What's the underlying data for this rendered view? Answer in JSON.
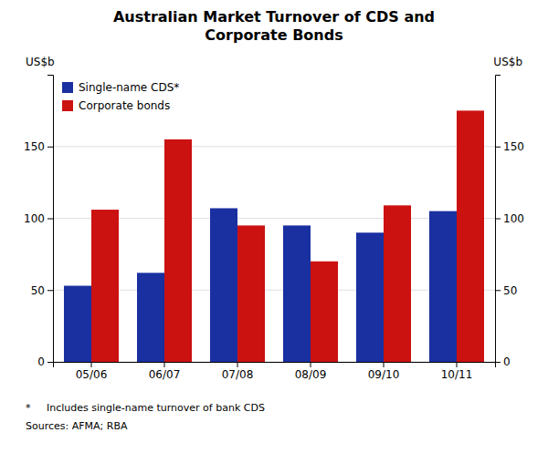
{
  "chart_data": {
    "type": "bar",
    "title": "Australian Market Turnover of CDS and\nCorporate Bonds",
    "categories": [
      "05/06",
      "06/07",
      "07/08",
      "08/09",
      "09/10",
      "10/11"
    ],
    "series": [
      {
        "name": "Single-name CDS*",
        "color": "#1a2fa0",
        "values": [
          53,
          62,
          107,
          95,
          90,
          105
        ]
      },
      {
        "name": "Corporate bonds",
        "color": "#cc1111",
        "values": [
          106,
          155,
          95,
          70,
          109,
          175
        ]
      }
    ],
    "ylabel": "US$b",
    "y2label": "US$b",
    "ylim": [
      0,
      200
    ],
    "yticks": [
      0,
      50,
      100,
      150
    ],
    "y2lim": [
      0,
      200
    ],
    "y2ticks": [
      0,
      50,
      100,
      150
    ],
    "grid": true,
    "legend": "upper left",
    "annotations": [
      "*     Includes single-name turnover of bank CDS",
      "Sources: AFMA; RBA"
    ]
  }
}
